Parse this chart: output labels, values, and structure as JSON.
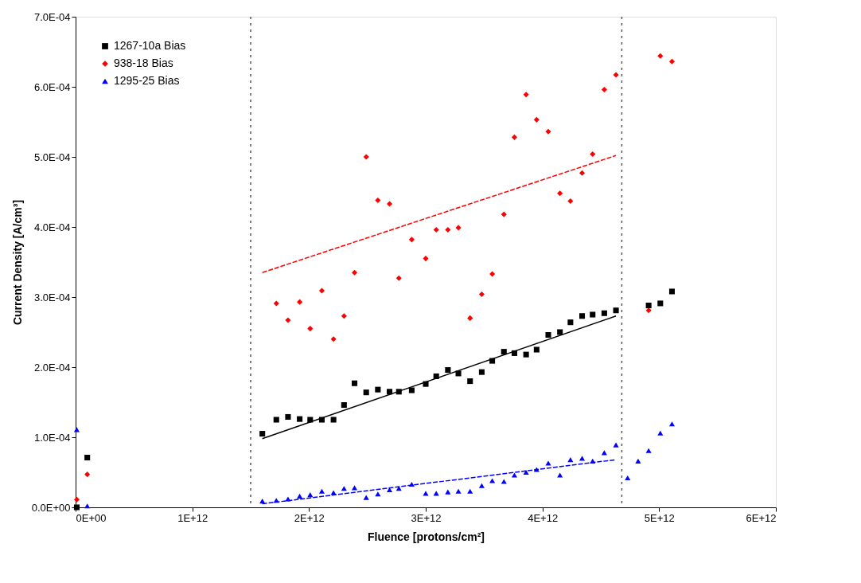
{
  "chart_data": {
    "type": "scatter",
    "xlabel": "Fluence [protons/cm²]",
    "ylabel": "Current Density [A/cm³]",
    "xlim": [
      0,
      6000000000000.0
    ],
    "ylim": [
      0,
      0.0007
    ],
    "xticks": [
      {
        "value": 0,
        "label": "0E+00"
      },
      {
        "value": 1000000000000.0,
        "label": "1E+12"
      },
      {
        "value": 2000000000000.0,
        "label": "2E+12"
      },
      {
        "value": 3000000000000.0,
        "label": "3E+12"
      },
      {
        "value": 4000000000000.0,
        "label": "4E+12"
      },
      {
        "value": 5000000000000.0,
        "label": "5E+12"
      },
      {
        "value": 6000000000000.0,
        "label": "6E+12"
      }
    ],
    "yticks": [
      {
        "value": 0,
        "label": "0.0E+00"
      },
      {
        "value": 0.0001,
        "label": "1.0E-04"
      },
      {
        "value": 0.0002,
        "label": "2.0E-04"
      },
      {
        "value": 0.0003,
        "label": "3.0E-04"
      },
      {
        "value": 0.0004,
        "label": "4.0E-04"
      },
      {
        "value": 0.0005,
        "label": "5.0E-04"
      },
      {
        "value": 0.0006,
        "label": "6.0E-04"
      },
      {
        "value": 0.0007,
        "label": "7.0E-04"
      }
    ],
    "grid": false,
    "legend": "top left",
    "series": [
      {
        "name": "1267-10a Bias",
        "color": "#000000",
        "marker": "square",
        "x": [
          10000000000.0,
          100000000000.0,
          1600000000000.0,
          1720000000000.0,
          1820000000000.0,
          1920000000000.0,
          2010000000000.0,
          2110000000000.0,
          2210000000000.0,
          2300000000000.0,
          2390000000000.0,
          2490000000000.0,
          2590000000000.0,
          2690000000000.0,
          2770000000000.0,
          2880000000000.0,
          3000000000000.0,
          3090000000000.0,
          3190000000000.0,
          3280000000000.0,
          3380000000000.0,
          3480000000000.0,
          3570000000000.0,
          3670000000000.0,
          3760000000000.0,
          3860000000000.0,
          3950000000000.0,
          4050000000000.0,
          4150000000000.0,
          4240000000000.0,
          4340000000000.0,
          4430000000000.0,
          4530000000000.0,
          4630000000000.0,
          4910000000000.0,
          5010000000000.0,
          5110000000000.0
        ],
        "values": [
          0.0,
          7.1e-05,
          0.000105,
          0.000125,
          0.000129,
          0.000126,
          0.000125,
          0.000125,
          0.000125,
          0.000146,
          0.000177,
          0.000164,
          0.000168,
          0.000165,
          0.000165,
          0.000167,
          0.000176,
          0.000187,
          0.000196,
          0.000191,
          0.00018,
          0.000193,
          0.000209,
          0.000222,
          0.00022,
          0.000218,
          0.000225,
          0.000246,
          0.00025,
          0.000264,
          0.000273,
          0.000275,
          0.000277,
          0.000281,
          0.000288,
          0.000291,
          0.000308
        ]
      },
      {
        "name": "938-18 Bias",
        "color": "#ff0000",
        "marker": "diamond",
        "x": [
          10000000000.0,
          100000000000.0,
          1720000000000.0,
          1820000000000.0,
          1920000000000.0,
          2010000000000.0,
          2110000000000.0,
          2210000000000.0,
          2300000000000.0,
          2390000000000.0,
          2490000000000.0,
          2590000000000.0,
          2690000000000.0,
          2770000000000.0,
          2880000000000.0,
          3000000000000.0,
          3090000000000.0,
          3190000000000.0,
          3280000000000.0,
          3380000000000.0,
          3480000000000.0,
          3570000000000.0,
          3670000000000.0,
          3760000000000.0,
          3860000000000.0,
          3950000000000.0,
          4050000000000.0,
          4150000000000.0,
          4240000000000.0,
          4340000000000.0,
          4430000000000.0,
          4530000000000.0,
          4630000000000.0,
          4910000000000.0,
          5010000000000.0,
          5110000000000.0
        ],
        "values": [
          1.1e-05,
          4.7e-05,
          0.000291,
          0.000267,
          0.000293,
          0.000255,
          0.000309,
          0.00024,
          0.000273,
          0.000335,
          0.0005,
          0.000438,
          0.000433,
          0.000327,
          0.000382,
          0.000355,
          0.000396,
          0.000396,
          0.000399,
          0.00027,
          0.000304,
          0.000333,
          0.000418,
          0.000528,
          0.000589,
          0.000553,
          0.000536,
          0.000448,
          0.000437,
          0.000477,
          0.000504,
          0.000596,
          0.000617,
          0.000281,
          0.000644,
          0.000636
        ]
      },
      {
        "name": "1295-25 Bias",
        "color": "#0000ff",
        "marker": "triangle",
        "x": [
          10000000000.0,
          100000000000.0,
          1600000000000.0,
          1720000000000.0,
          1820000000000.0,
          1920000000000.0,
          2010000000000.0,
          2110000000000.0,
          2210000000000.0,
          2300000000000.0,
          2390000000000.0,
          2490000000000.0,
          2590000000000.0,
          2690000000000.0,
          2770000000000.0,
          2880000000000.0,
          3000000000000.0,
          3090000000000.0,
          3190000000000.0,
          3280000000000.0,
          3380000000000.0,
          3480000000000.0,
          3570000000000.0,
          3670000000000.0,
          3760000000000.0,
          3860000000000.0,
          3950000000000.0,
          4050000000000.0,
          4150000000000.0,
          4240000000000.0,
          4340000000000.0,
          4430000000000.0,
          4530000000000.0,
          4630000000000.0,
          4730000000000.0,
          4820000000000.0,
          4910000000000.0,
          5010000000000.0,
          5110000000000.0
        ],
        "values": [
          0.000111,
          2e-06,
          9e-06,
          1e-05,
          1.2e-05,
          1.6e-05,
          1.8e-05,
          2.3e-05,
          2.1e-05,
          2.7e-05,
          2.8e-05,
          1.4e-05,
          1.9e-05,
          2.5e-05,
          2.7e-05,
          3.3e-05,
          2e-05,
          2e-05,
          2.2e-05,
          2.3e-05,
          2.3e-05,
          3.1e-05,
          3.8e-05,
          3.7e-05,
          4.6e-05,
          5e-05,
          5.4e-05,
          6.3e-05,
          4.6e-05,
          6.8e-05,
          7e-05,
          6.6e-05,
          7.8e-05,
          8.9e-05,
          4.2e-05,
          6.6e-05,
          8.1e-05,
          0.000106,
          0.000119
        ]
      },
      {
        "type": "line",
        "color": "#000000",
        "line_style": "solid",
        "x": [
          1600000000000.0,
          4630000000000.0
        ],
        "values": [
          9.8e-05,
          0.000273
        ]
      },
      {
        "type": "line",
        "color": "#ff0000",
        "line_style": "dashed",
        "x": [
          1600000000000.0,
          4630000000000.0
        ],
        "values": [
          0.000335,
          0.000502
        ]
      },
      {
        "type": "line",
        "color": "#0000ff",
        "line_style": "dashed",
        "x": [
          1600000000000.0,
          4630000000000.0
        ],
        "values": [
          5e-06,
          6.8e-05
        ]
      }
    ],
    "ref_lines": [
      {
        "axis": "x",
        "value": 1500000000000.0,
        "color": "#555555",
        "line_style": "dotted"
      },
      {
        "axis": "x",
        "value": 4680000000000.0,
        "color": "#555555",
        "line_style": "dotted"
      }
    ]
  }
}
